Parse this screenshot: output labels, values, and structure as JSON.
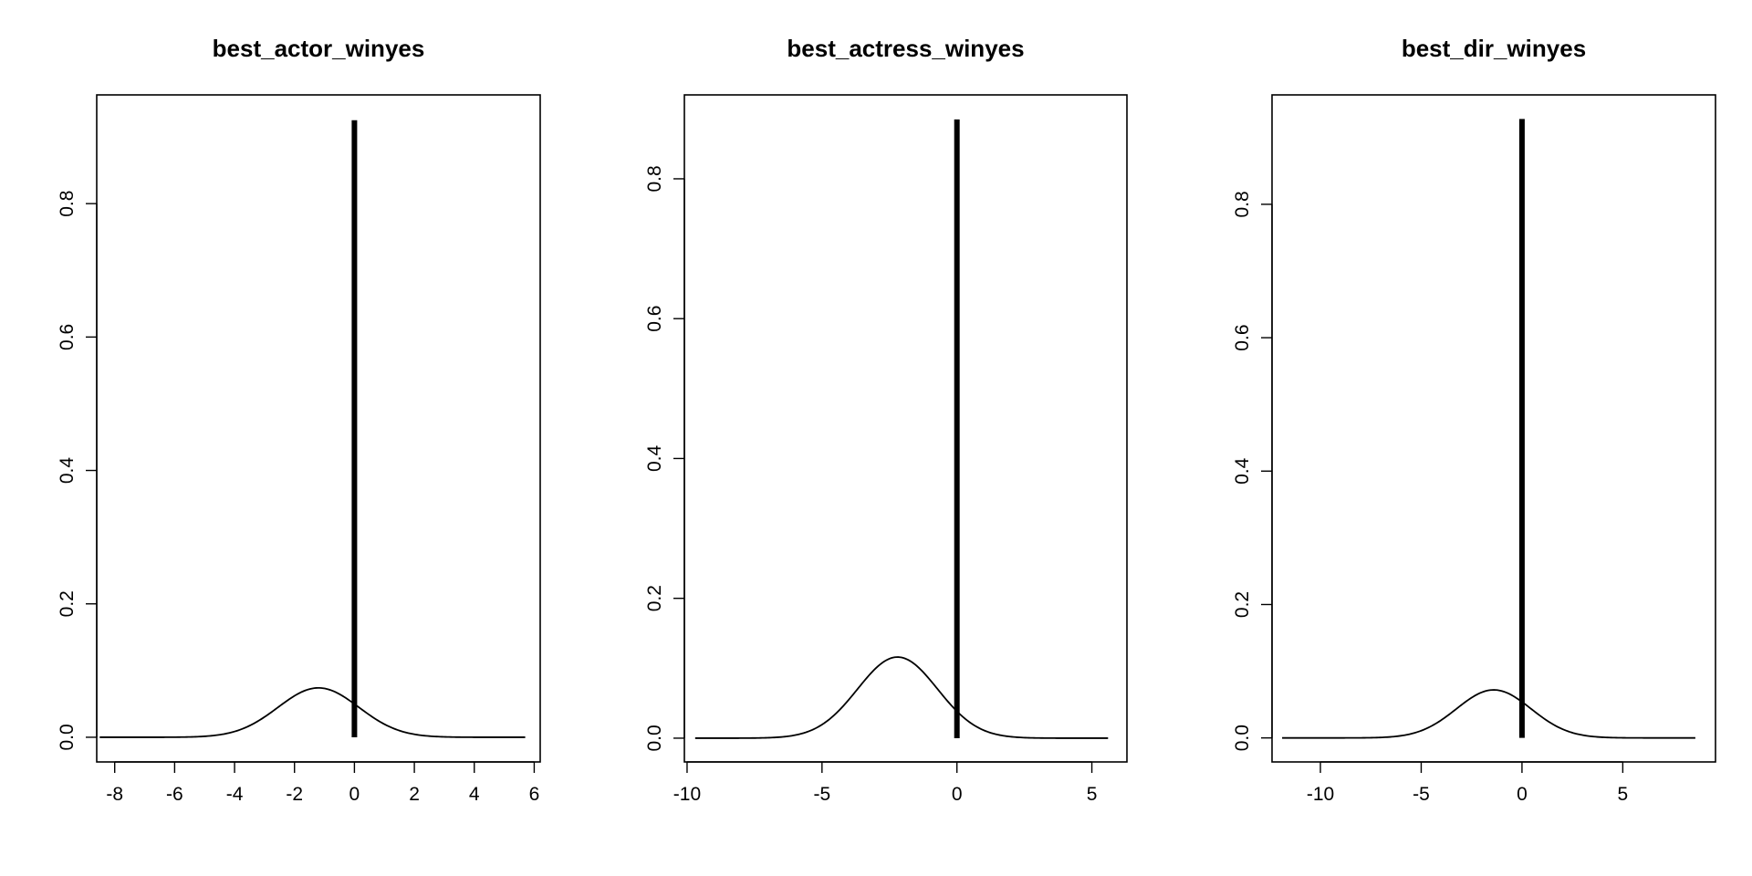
{
  "chart_data": [
    {
      "type": "line",
      "title": "best_actor_winyes",
      "xlabel": "",
      "ylabel": "",
      "xlim": [
        -8.6,
        6.2
      ],
      "ylim": [
        -0.037,
        0.963
      ],
      "x_ticks": [
        -8,
        -6,
        -4,
        -2,
        0,
        2,
        4,
        6
      ],
      "x_tick_labels": [
        "-8",
        "-6",
        "-4",
        "-2",
        "0",
        "2",
        "4",
        "6"
      ],
      "y_ticks": [
        0.0,
        0.2,
        0.4,
        0.6,
        0.8
      ],
      "y_tick_labels": [
        "0.0",
        "0.2",
        "0.4",
        "0.6",
        "0.8"
      ],
      "grid": false,
      "series": [
        {
          "kind": "density",
          "mean": -1.2,
          "sd": 1.35,
          "range": [
            -8.5,
            5.7
          ],
          "peak": 0.074
        },
        {
          "kind": "spike",
          "x": 0,
          "y_bottom": 0,
          "y_top": 0.925
        }
      ]
    },
    {
      "type": "line",
      "title": "best_actress_winyes",
      "xlabel": "",
      "ylabel": "",
      "xlim": [
        -10.1,
        6.3
      ],
      "ylim": [
        -0.034,
        0.92
      ],
      "x_ticks": [
        -10,
        -5,
        0,
        5
      ],
      "x_tick_labels": [
        "-10",
        "-5",
        "0",
        "5"
      ],
      "y_ticks": [
        0.0,
        0.2,
        0.4,
        0.6,
        0.8
      ],
      "y_tick_labels": [
        "0.0",
        "0.2",
        "0.4",
        "0.6",
        "0.8"
      ],
      "grid": false,
      "series": [
        {
          "kind": "density",
          "mean": -2.2,
          "sd": 1.48,
          "range": [
            -9.7,
            5.6
          ],
          "peak": 0.116
        },
        {
          "kind": "spike",
          "x": 0,
          "y_bottom": 0,
          "y_top": 0.885
        }
      ]
    },
    {
      "type": "line",
      "title": "best_dir_winyes",
      "xlabel": "",
      "ylabel": "",
      "xlim": [
        -12.4,
        9.6
      ],
      "ylim": [
        -0.036,
        0.964
      ],
      "x_ticks": [
        -10,
        -5,
        0,
        5
      ],
      "x_tick_labels": [
        "-10",
        "-5",
        "0",
        "5"
      ],
      "y_ticks": [
        0.0,
        0.2,
        0.4,
        0.6,
        0.8
      ],
      "y_tick_labels": [
        "0.0",
        "0.2",
        "0.4",
        "0.6",
        "0.8"
      ],
      "grid": false,
      "series": [
        {
          "kind": "density",
          "mean": -1.4,
          "sd": 1.85,
          "range": [
            -11.9,
            8.6
          ],
          "peak": 0.072
        },
        {
          "kind": "spike",
          "x": 0,
          "y_bottom": 0,
          "y_top": 0.928
        }
      ]
    }
  ]
}
